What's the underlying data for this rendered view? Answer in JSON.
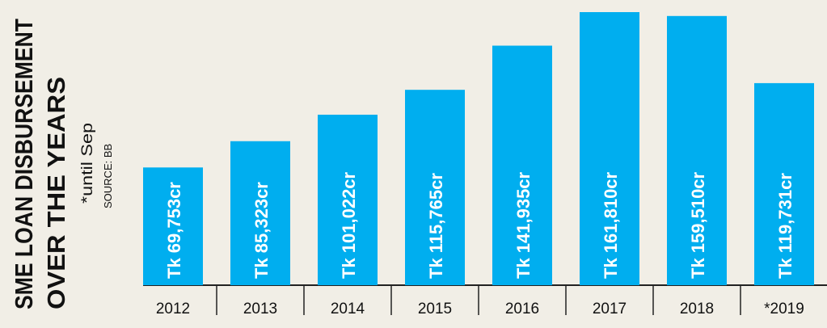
{
  "chart_data": {
    "type": "bar",
    "title": [
      "SME LOAN DISBURSEMENT",
      "OVER THE YEARS"
    ],
    "note": "*until Sep",
    "source": "SOURCE: BB",
    "categories": [
      "2012",
      "2013",
      "2014",
      "2015",
      "2016",
      "2017",
      "2018",
      "*2019"
    ],
    "values": [
      69753,
      85323,
      101022,
      115765,
      141935,
      161810,
      159510,
      119731
    ],
    "value_labels": [
      "Tk 69,753cr",
      "Tk 85,323cr",
      "Tk 101,022cr",
      "Tk 115,765cr",
      "Tk 141,935cr",
      "Tk 161,810cr",
      "Tk 159,510cr",
      "Tk 119,731cr"
    ],
    "color": "#00aeef"
  }
}
